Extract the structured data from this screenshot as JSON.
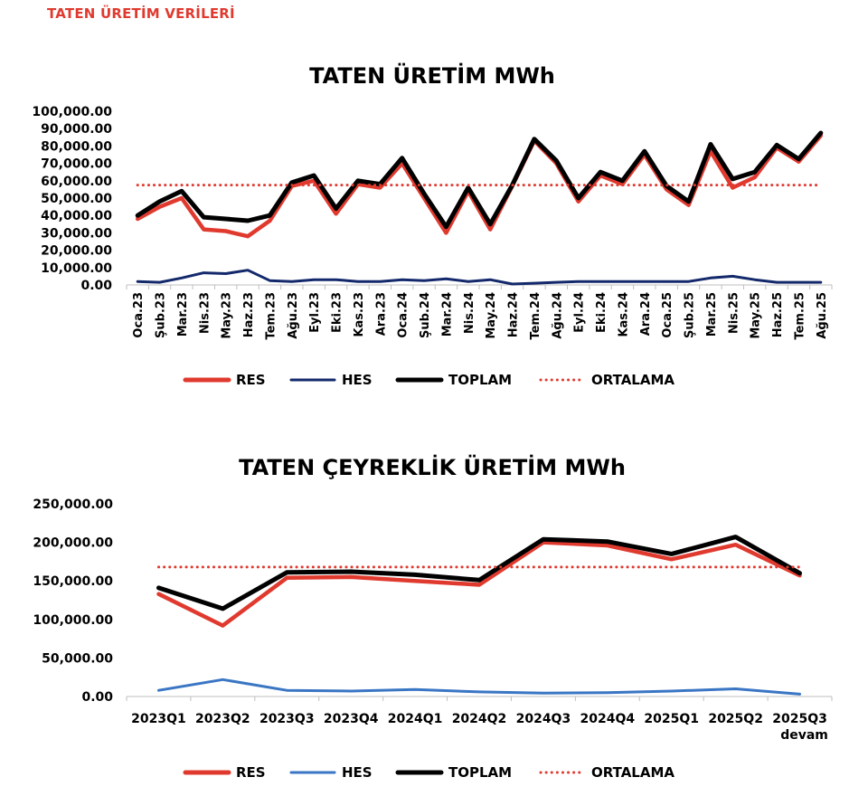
{
  "header": "TATEN ÜRETİM VERİLERİ",
  "chart_data": [
    {
      "type": "line",
      "title": "TATEN ÜRETİM MWh",
      "ylim": [
        0,
        100000
      ],
      "y_ticks": [
        "100,000.00",
        "90,000.00",
        "80,000.00",
        "70,000.00",
        "60,000.00",
        "50,000.00",
        "40,000.00",
        "30,000.00",
        "20,000.00",
        "10,000.00",
        "0.00"
      ],
      "categories": [
        "Oca.23",
        "Şub.23",
        "Mar.23",
        "Nis.23",
        "May.23",
        "Haz.23",
        "Tem.23",
        "Ağu.23",
        "Eyl.23",
        "Eki.23",
        "Kas.23",
        "Ara.23",
        "Oca.24",
        "Şub.24",
        "Mar.24",
        "Nis.24",
        "May.24",
        "Haz.24",
        "Tem.24",
        "Ağu.24",
        "Eyl.24",
        "Eki.24",
        "Kas.24",
        "Ara.24",
        "Oca.25",
        "Şub.25",
        "Mar.25",
        "Nis.25",
        "May.25",
        "Haz.25",
        "Tem.25",
        "Ağu.25"
      ],
      "series": [
        {
          "name": "RES",
          "color": "#e03a2f",
          "style": "solid",
          "values": [
            38000,
            45000,
            50000,
            32000,
            31000,
            28000,
            37000,
            57000,
            60000,
            41000,
            58000,
            56000,
            70000,
            50000,
            30000,
            54000,
            32000,
            57000,
            83000,
            70000,
            48000,
            63000,
            58000,
            75000,
            55000,
            46000,
            77000,
            56000,
            62000,
            79000,
            71000,
            86000
          ]
        },
        {
          "name": "HES",
          "color": "#13296b",
          "style": "solid",
          "values": [
            2000,
            1500,
            4000,
            7000,
            6500,
            8500,
            2500,
            2000,
            3000,
            3000,
            2000,
            2000,
            3000,
            2500,
            3500,
            2000,
            3000,
            500,
            1000,
            1500,
            2000,
            2000,
            2000,
            2000,
            2000,
            2000,
            4000,
            5000,
            3000,
            1500,
            1500,
            1500
          ]
        },
        {
          "name": "TOPLAM",
          "color": "#000000",
          "style": "solid",
          "values": [
            40000,
            48000,
            54000,
            39000,
            38000,
            37000,
            40000,
            59000,
            63000,
            44000,
            60000,
            58000,
            73000,
            52500,
            33500,
            56000,
            35000,
            57500,
            84000,
            71500,
            50000,
            65000,
            60000,
            77000,
            57000,
            48000,
            81000,
            61000,
            65000,
            80500,
            72500,
            87500
          ]
        },
        {
          "name": "ORTALAMA",
          "color": "#e03a2f",
          "style": "dotted",
          "values": [
            57500,
            57500,
            57500,
            57500,
            57500,
            57500,
            57500,
            57500,
            57500,
            57500,
            57500,
            57500,
            57500,
            57500,
            57500,
            57500,
            57500,
            57500,
            57500,
            57500,
            57500,
            57500,
            57500,
            57500,
            57500,
            57500,
            57500,
            57500,
            57500,
            57500,
            57500,
            57500
          ]
        }
      ],
      "legend": "bottom"
    },
    {
      "type": "line",
      "title": "TATEN ÇEYREKLİK ÜRETİM MWh",
      "ylim": [
        0,
        250000
      ],
      "y_ticks": [
        "250,000.00",
        "200,000.00",
        "150,000.00",
        "100,000.00",
        "50,000.00",
        "0.00"
      ],
      "categories": [
        "2023Q1",
        "2023Q2",
        "2023Q3",
        "2023Q4",
        "2024Q1",
        "2024Q2",
        "2024Q3",
        "2024Q4",
        "2025Q1",
        "2025Q2",
        "2025Q3 devam"
      ],
      "series": [
        {
          "name": "RES",
          "color": "#e03a2f",
          "style": "solid",
          "values": [
            133000,
            92000,
            154000,
            155000,
            150000,
            145000,
            200000,
            196000,
            178000,
            197000,
            157000
          ]
        },
        {
          "name": "HES",
          "color": "#3a76c4",
          "style": "solid",
          "values": [
            8000,
            22000,
            8000,
            7000,
            9000,
            6000,
            4500,
            5000,
            7000,
            10000,
            3000
          ]
        },
        {
          "name": "TOPLAM",
          "color": "#000000",
          "style": "solid",
          "values": [
            141000,
            114000,
            161000,
            162000,
            158000,
            151000,
            204000,
            201000,
            185000,
            207000,
            160000
          ]
        },
        {
          "name": "ORTALAMA",
          "color": "#e03a2f",
          "style": "dotted",
          "values": [
            168000,
            168000,
            168000,
            168000,
            168000,
            168000,
            168000,
            168000,
            168000,
            168000,
            168000
          ]
        }
      ],
      "legend": "bottom"
    }
  ]
}
